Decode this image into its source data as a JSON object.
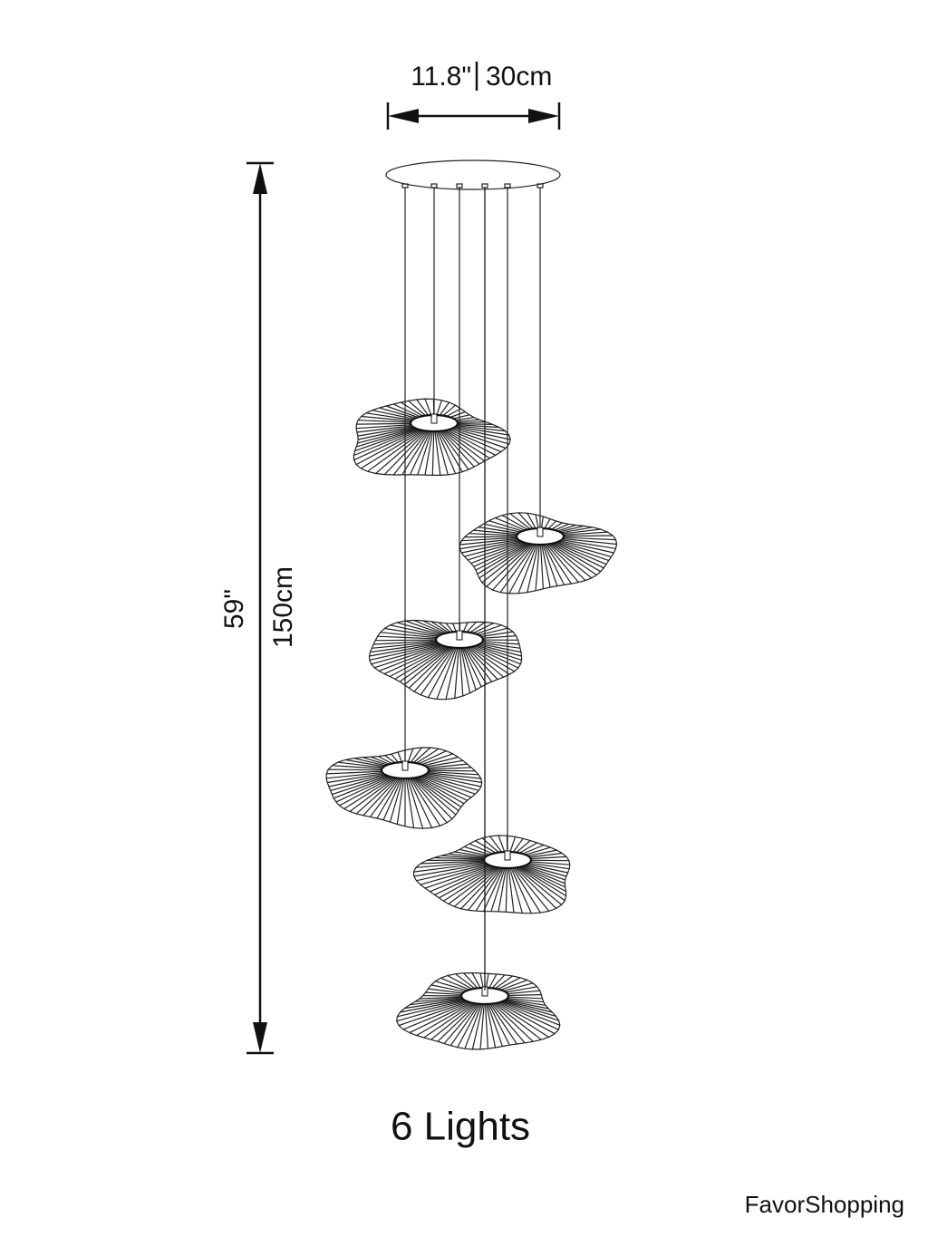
{
  "dimensions": {
    "width_in": "11.8\"",
    "width_cm": "30cm",
    "height_in": "59\"",
    "height_cm": "150cm"
  },
  "caption": "6 Lights",
  "brand": "FavorShopping"
}
